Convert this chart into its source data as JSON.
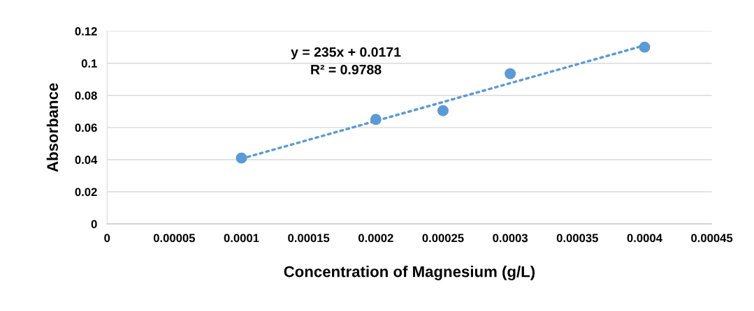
{
  "chart_data": {
    "type": "scatter",
    "xlabel": "Concentration of Magnesium (g/L)",
    "ylabel": "Absorbance",
    "x": [
      0.0001,
      0.0002,
      0.00025,
      0.0003,
      0.0004
    ],
    "series": [
      {
        "color": "#5b9bd5",
        "values": [
          0.041,
          0.065,
          0.0705,
          0.0935,
          0.11
        ],
        "marker": "circle"
      },
      {
        "type": "line",
        "color": "#5b9bd5",
        "x": [
          0.0001,
          0.0004
        ],
        "values": [
          0.0406,
          0.1111
        ],
        "line_style": "dotted",
        "marker": "none"
      }
    ],
    "annotations": [
      "y = 235x + 0.0171\nR² = 0.9788"
    ],
    "xlim": [
      0,
      0.00045
    ],
    "xticks": [
      {
        "value": 0,
        "label": "0"
      },
      {
        "value": 5e-05,
        "label": "0.00005"
      },
      {
        "value": 0.0001,
        "label": "0.0001"
      },
      {
        "value": 0.00015,
        "label": "0.00015"
      },
      {
        "value": 0.0002,
        "label": "0.0002"
      },
      {
        "value": 0.00025,
        "label": "0.00025"
      },
      {
        "value": 0.0003,
        "label": "0.0003"
      },
      {
        "value": 0.00035,
        "label": "0.00035"
      },
      {
        "value": 0.0004,
        "label": "0.0004"
      },
      {
        "value": 0.00045,
        "label": "0.00045"
      }
    ],
    "ylim": [
      0,
      0.12
    ],
    "yticks": [
      0,
      0.02,
      0.04,
      0.06,
      0.08,
      0.1,
      0.12
    ],
    "grid": "y"
  }
}
